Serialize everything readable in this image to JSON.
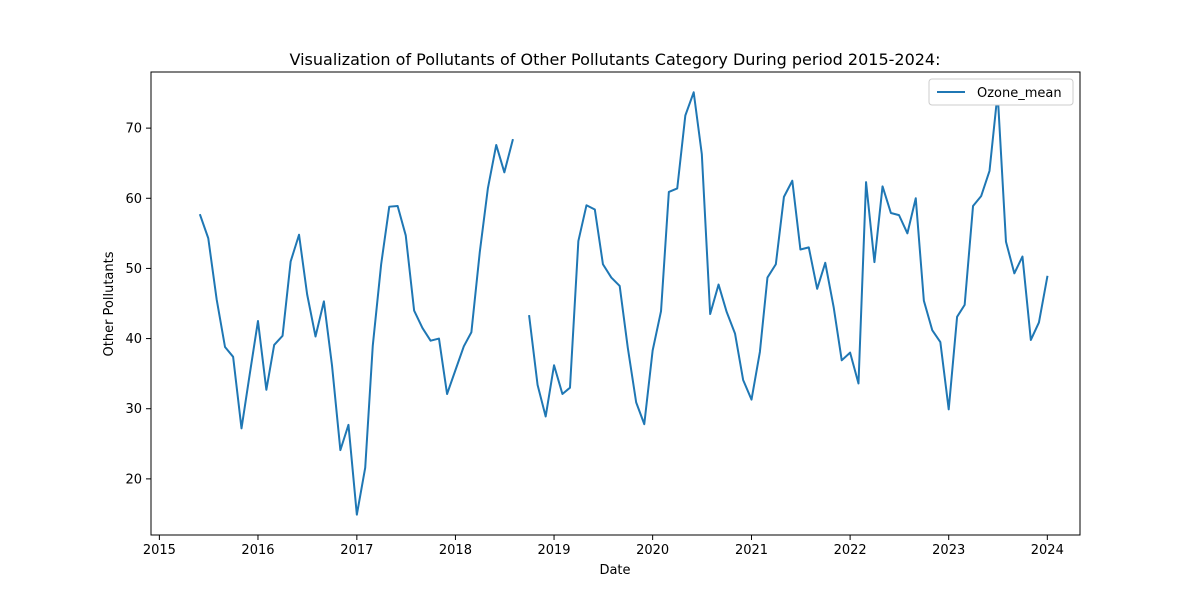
{
  "chart_data": {
    "type": "line",
    "title": "Visualization of Pollutants of Other Pollutants Category During period 2015-2024:",
    "xlabel": "Date",
    "ylabel": "Other Pollutants",
    "x_ticks": [
      "2015",
      "2016",
      "2017",
      "2018",
      "2019",
      "2020",
      "2021",
      "2022",
      "2023",
      "2024"
    ],
    "y_ticks": [
      "20",
      "30",
      "40",
      "50",
      "60",
      "70"
    ],
    "xlim": [
      "2014-12-01",
      "2024-05-01"
    ],
    "ylim": [
      12,
      78
    ],
    "grid": false,
    "legend_position": "top-right",
    "series": [
      {
        "name": "Ozone_mean",
        "color": "#1f77b4",
        "points": [
          {
            "x": "2015-06",
            "y": 57.6
          },
          {
            "x": "2015-07",
            "y": 54.3
          },
          {
            "x": "2015-08",
            "y": 45.6
          },
          {
            "x": "2015-09",
            "y": 38.8
          },
          {
            "x": "2015-10",
            "y": 37.4
          },
          {
            "x": "2015-11",
            "y": 27.2
          },
          {
            "x": "2015-12",
            "y": 34.8
          },
          {
            "x": "2016-01",
            "y": 42.5
          },
          {
            "x": "2016-02",
            "y": 32.7
          },
          {
            "x": "2016-03",
            "y": 39.1
          },
          {
            "x": "2016-04",
            "y": 40.4
          },
          {
            "x": "2016-05",
            "y": 51.0
          },
          {
            "x": "2016-06",
            "y": 54.8
          },
          {
            "x": "2016-07",
            "y": 46.3
          },
          {
            "x": "2016-08",
            "y": 40.3
          },
          {
            "x": "2016-09",
            "y": 45.3
          },
          {
            "x": "2016-10",
            "y": 36.2
          },
          {
            "x": "2016-11",
            "y": 24.1
          },
          {
            "x": "2016-12",
            "y": 27.7
          },
          {
            "x": "2017-01",
            "y": 14.9
          },
          {
            "x": "2017-02",
            "y": 21.6
          },
          {
            "x": "2017-03",
            "y": 39.0
          },
          {
            "x": "2017-04",
            "y": 50.6
          },
          {
            "x": "2017-05",
            "y": 58.8
          },
          {
            "x": "2017-06",
            "y": 58.9
          },
          {
            "x": "2017-07",
            "y": 54.7
          },
          {
            "x": "2017-08",
            "y": 44.0
          },
          {
            "x": "2017-09",
            "y": 41.5
          },
          {
            "x": "2017-10",
            "y": 39.7
          },
          {
            "x": "2017-11",
            "y": 40.0
          },
          {
            "x": "2017-12",
            "y": 32.1
          },
          {
            "x": "2018-01",
            "y": 35.5
          },
          {
            "x": "2018-02",
            "y": 38.9
          },
          {
            "x": "2018-03",
            "y": 40.9
          },
          {
            "x": "2018-04",
            "y": 52.3
          },
          {
            "x": "2018-05",
            "y": 61.4
          },
          {
            "x": "2018-06",
            "y": 67.6
          },
          {
            "x": "2018-07",
            "y": 63.7
          },
          {
            "x": "2018-08",
            "y": 68.3
          },
          {
            "x": "2018-09",
            "y": null
          },
          {
            "x": "2018-10",
            "y": 43.2
          },
          {
            "x": "2018-11",
            "y": 33.4
          },
          {
            "x": "2018-12",
            "y": 28.9
          },
          {
            "x": "2019-01",
            "y": 36.2
          },
          {
            "x": "2019-02",
            "y": 32.1
          },
          {
            "x": "2019-03",
            "y": 33.0
          },
          {
            "x": "2019-04",
            "y": 53.9
          },
          {
            "x": "2019-05",
            "y": 59.0
          },
          {
            "x": "2019-06",
            "y": 58.4
          },
          {
            "x": "2019-07",
            "y": 50.6
          },
          {
            "x": "2019-08",
            "y": 48.7
          },
          {
            "x": "2019-09",
            "y": 47.5
          },
          {
            "x": "2019-10",
            "y": 38.7
          },
          {
            "x": "2019-11",
            "y": 30.9
          },
          {
            "x": "2019-12",
            "y": 27.8
          },
          {
            "x": "2020-01",
            "y": 38.3
          },
          {
            "x": "2020-02",
            "y": 43.9
          },
          {
            "x": "2020-03",
            "y": 60.9
          },
          {
            "x": "2020-04",
            "y": 61.4
          },
          {
            "x": "2020-05",
            "y": 71.8
          },
          {
            "x": "2020-06",
            "y": 75.1
          },
          {
            "x": "2020-07",
            "y": 66.3
          },
          {
            "x": "2020-08",
            "y": 43.5
          },
          {
            "x": "2020-09",
            "y": 47.7
          },
          {
            "x": "2020-10",
            "y": 43.8
          },
          {
            "x": "2020-11",
            "y": 40.7
          },
          {
            "x": "2020-12",
            "y": 34.1
          },
          {
            "x": "2021-01",
            "y": 31.3
          },
          {
            "x": "2021-02",
            "y": 38.1
          },
          {
            "x": "2021-03",
            "y": 48.7
          },
          {
            "x": "2021-04",
            "y": 50.6
          },
          {
            "x": "2021-05",
            "y": 60.2
          },
          {
            "x": "2021-06",
            "y": 62.5
          },
          {
            "x": "2021-07",
            "y": 52.7
          },
          {
            "x": "2021-08",
            "y": 53.0
          },
          {
            "x": "2021-09",
            "y": 47.1
          },
          {
            "x": "2021-10",
            "y": 50.8
          },
          {
            "x": "2021-11",
            "y": 44.5
          },
          {
            "x": "2021-12",
            "y": 36.9
          },
          {
            "x": "2022-01",
            "y": 38.0
          },
          {
            "x": "2022-02",
            "y": 33.6
          },
          {
            "x": "2022-03",
            "y": 62.3
          },
          {
            "x": "2022-04",
            "y": 50.9
          },
          {
            "x": "2022-05",
            "y": 61.7
          },
          {
            "x": "2022-06",
            "y": 57.9
          },
          {
            "x": "2022-07",
            "y": 57.6
          },
          {
            "x": "2022-08",
            "y": 55.0
          },
          {
            "x": "2022-09",
            "y": 60.0
          },
          {
            "x": "2022-10",
            "y": 45.4
          },
          {
            "x": "2022-11",
            "y": 41.2
          },
          {
            "x": "2022-12",
            "y": 39.5
          },
          {
            "x": "2023-01",
            "y": 29.9
          },
          {
            "x": "2023-02",
            "y": 43.1
          },
          {
            "x": "2023-03",
            "y": 44.8
          },
          {
            "x": "2023-04",
            "y": 58.9
          },
          {
            "x": "2023-05",
            "y": 60.3
          },
          {
            "x": "2023-06",
            "y": 63.9
          },
          {
            "x": "2023-07",
            "y": 75.0
          },
          {
            "x": "2023-08",
            "y": 53.8
          },
          {
            "x": "2023-09",
            "y": 49.3
          },
          {
            "x": "2023-10",
            "y": 51.7
          },
          {
            "x": "2023-11",
            "y": 39.8
          },
          {
            "x": "2023-12",
            "y": 42.3
          },
          {
            "x": "2024-01",
            "y": 48.8
          }
        ]
      }
    ]
  }
}
